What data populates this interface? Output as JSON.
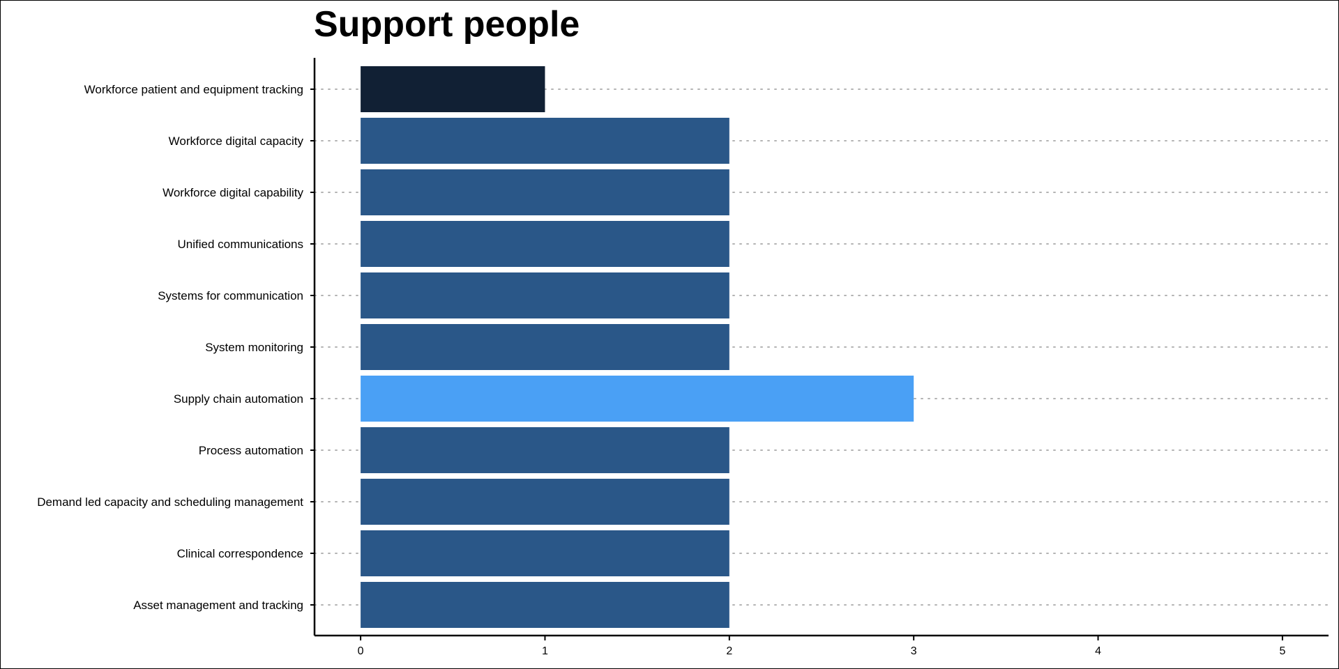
{
  "chart_data": {
    "type": "bar",
    "orientation": "horizontal",
    "title": "Support people",
    "xlabel": "",
    "ylabel": "",
    "categories": [
      "Workforce patient and equipment tracking",
      "Workforce digital capacity",
      "Workforce digital capability",
      "Unified communications",
      "Systems for communication",
      "System monitoring",
      "Supply chain automation",
      "Process automation",
      "Demand led capacity and scheduling management",
      "Clinical correspondence",
      "Asset management and tracking"
    ],
    "values": [
      1,
      2,
      2,
      2,
      2,
      2,
      3,
      2,
      2,
      2,
      2
    ],
    "xlim": [
      -0.25,
      5.25
    ],
    "xticks": [
      0,
      1,
      2,
      3,
      4,
      5
    ],
    "xtick_labels": [
      "0",
      "1",
      "2",
      "3",
      "4",
      "5"
    ],
    "grid": "dotted horizontal lines at each category",
    "legend": "none",
    "colors": {
      "1": "#112034",
      "2": "#2a5788",
      "3": "#4aa0f5"
    },
    "grid_color": "#b3b3b3",
    "axis_color": "#000000"
  }
}
